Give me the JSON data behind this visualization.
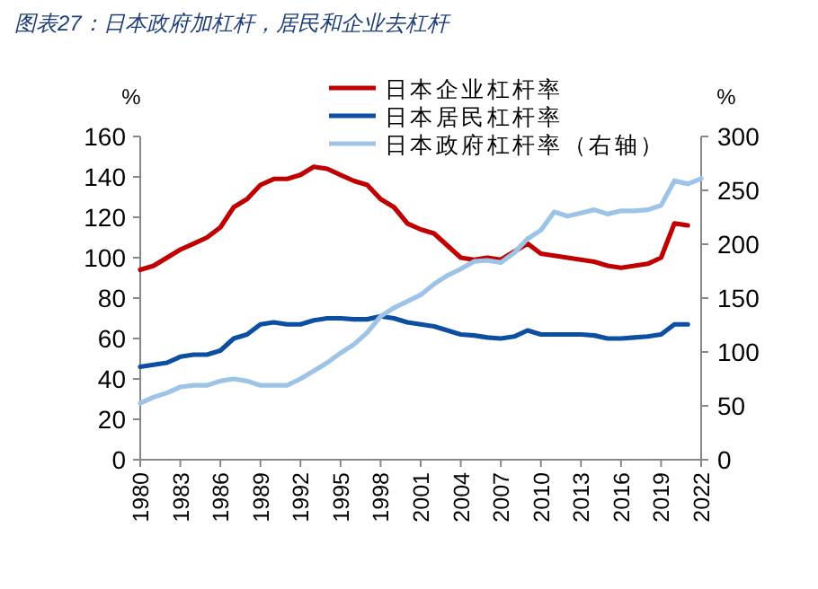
{
  "chart_data": {
    "type": "line",
    "title": "图表27：日本政府加杠杆，居民和企业去杠杆",
    "ylabel": "%",
    "y2label": "%",
    "x": [
      1980,
      1981,
      1982,
      1983,
      1984,
      1985,
      1986,
      1987,
      1988,
      1989,
      1990,
      1991,
      1992,
      1993,
      1994,
      1995,
      1996,
      1997,
      1998,
      1999,
      2000,
      2001,
      2002,
      2003,
      2004,
      2005,
      2006,
      2007,
      2008,
      2009,
      2010,
      2011,
      2012,
      2013,
      2014,
      2015,
      2016,
      2017,
      2018,
      2019,
      2020,
      2021,
      2022
    ],
    "xlim": [
      1980,
      2022
    ],
    "xticks": [
      1980,
      1983,
      1986,
      1989,
      1992,
      1995,
      1998,
      2001,
      2004,
      2007,
      2010,
      2013,
      2016,
      2019,
      2022
    ],
    "ylim": [
      0,
      160
    ],
    "yticks": [
      0,
      20,
      40,
      60,
      80,
      100,
      120,
      140,
      160
    ],
    "y2lim": [
      0,
      300
    ],
    "y2ticks": [
      0,
      50,
      100,
      150,
      200,
      250,
      300
    ],
    "series": [
      {
        "name": "日本企业杠杆率",
        "color": "#c00000",
        "values": [
          94,
          96,
          100,
          104,
          107,
          110,
          115,
          125,
          129,
          136,
          139,
          139,
          141,
          145,
          144,
          141,
          138,
          136,
          129,
          125,
          117,
          114,
          112,
          106,
          100,
          99,
          100,
          99,
          103,
          107,
          102,
          101,
          100,
          99,
          98,
          96,
          95,
          96,
          97,
          100,
          117,
          116,
          null
        ]
      },
      {
        "name": "日本居民杠杆率",
        "color": "#0b4ea2",
        "values": [
          46,
          47,
          48,
          51,
          52,
          52,
          54,
          60,
          62,
          67,
          68,
          67,
          67,
          69,
          70,
          70,
          69.5,
          69.5,
          71,
          70,
          68,
          67,
          66,
          64,
          62,
          61.5,
          60.5,
          60,
          61,
          64,
          62,
          62,
          62,
          62,
          61.5,
          60,
          60,
          60.5,
          61,
          62,
          67,
          67,
          null
        ]
      },
      {
        "name": "日本政府杠杆率（右轴）",
        "color": "#9dc3e6",
        "axis": "y2",
        "values": [
          52.5,
          58,
          62,
          67.5,
          69,
          69,
          73,
          75,
          73,
          69,
          69,
          69,
          75,
          82.5,
          90,
          99,
          107,
          118,
          133,
          141,
          147,
          153,
          163,
          171,
          177,
          184,
          185,
          183,
          192,
          205,
          213,
          230,
          226,
          229,
          232,
          228,
          231,
          231,
          232,
          236,
          259,
          256,
          261
        ]
      }
    ],
    "legend": "top right",
    "grid": false,
    "marker": "none",
    "line_style": "solid"
  }
}
